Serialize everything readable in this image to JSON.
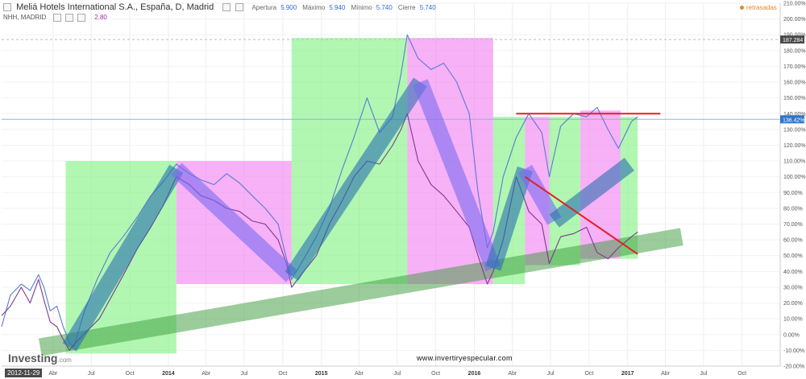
{
  "header": {
    "title": "Meliá Hotels International S.A., España, D, Madrid",
    "ohlc": [
      {
        "label": "Apertura",
        "value": "5.900"
      },
      {
        "label": "Máximo",
        "value": "5.940"
      },
      {
        "label": "Mínimo",
        "value": "5.740"
      },
      {
        "label": "Cierre",
        "value": "5.740"
      }
    ],
    "indicator_label": "NHH, MADRID",
    "indicator_value": "2.80",
    "delayed_label": "retrasadas"
  },
  "branding": {
    "logo_main": "Investing",
    "logo_suffix": ".com",
    "website": "www.invertiryespecular.com"
  },
  "colors": {
    "price_line": "#5b79d6",
    "indicator_line": "#7b3a8e",
    "green_zone": "#7df27d",
    "pink_zone": "#f27df2",
    "blue_band": "#2a6fb0",
    "purple_band": "#7a6af0",
    "trend_band": "#3a9a3a",
    "red_line": "#e0202a",
    "axis_text": "#555555",
    "badge_blue": "#2f74c9",
    "badge_dark": "#4a4a4a"
  },
  "chart_data": {
    "type": "line",
    "x_axis": {
      "type": "date",
      "tick_labels": [
        "Abr",
        "Jul",
        "Oct",
        "2014",
        "Abr",
        "Jul",
        "Oct",
        "2015",
        "Abr",
        "Jul",
        "Oct",
        "2016",
        "Abr",
        "Jul",
        "Oct",
        "2017",
        "Abr",
        "Jul",
        "Oct"
      ],
      "tick_dates": [
        "2013-04-01",
        "2013-07-01",
        "2013-10-01",
        "2014-01-01",
        "2014-04-01",
        "2014-07-01",
        "2014-10-01",
        "2015-01-01",
        "2015-04-01",
        "2015-07-01",
        "2015-10-01",
        "2016-01-01",
        "2016-04-01",
        "2016-07-01",
        "2016-10-01",
        "2017-01-01",
        "2017-04-01",
        "2017-07-01",
        "2017-10-01"
      ],
      "range": [
        "2012-11-29",
        "2017-12-31"
      ],
      "start_label": "2012-11-29"
    },
    "y_axis": {
      "unit": "%",
      "range": [
        -20,
        210
      ],
      "ticks": [
        -20,
        -10,
        0,
        10,
        20,
        30,
        40,
        50,
        60,
        70,
        80,
        90,
        100,
        110,
        120,
        130,
        140,
        150,
        160,
        170,
        180,
        190,
        200,
        210
      ],
      "tick_suffix": ".00%"
    },
    "price_badges": [
      {
        "label": "187.284",
        "value": 187,
        "style": "dark"
      },
      {
        "label": "136.42%",
        "value": 136.42,
        "style": "blue"
      }
    ],
    "series": [
      {
        "key": "price",
        "points": [
          [
            "2012-11-29",
            5
          ],
          [
            "2012-12-20",
            25
          ],
          [
            "2013-01-15",
            32
          ],
          [
            "2013-02-05",
            28
          ],
          [
            "2013-02-25",
            38
          ],
          [
            "2013-03-10",
            30
          ],
          [
            "2013-03-25",
            15
          ],
          [
            "2013-04-10",
            18
          ],
          [
            "2013-04-25",
            5
          ],
          [
            "2013-05-10",
            -5
          ],
          [
            "2013-05-20",
            -8
          ],
          [
            "2013-06-15",
            15
          ],
          [
            "2013-07-15",
            35
          ],
          [
            "2013-08-15",
            52
          ],
          [
            "2013-09-15",
            62
          ],
          [
            "2013-10-20",
            75
          ],
          [
            "2013-11-20",
            88
          ],
          [
            "2013-12-20",
            97
          ],
          [
            "2014-01-20",
            108
          ],
          [
            "2014-02-20",
            102
          ],
          [
            "2014-03-20",
            98
          ],
          [
            "2014-04-20",
            95
          ],
          [
            "2014-05-20",
            102
          ],
          [
            "2014-06-20",
            96
          ],
          [
            "2014-07-20",
            88
          ],
          [
            "2014-08-20",
            80
          ],
          [
            "2014-09-20",
            70
          ],
          [
            "2014-10-10",
            48
          ],
          [
            "2014-10-22",
            35
          ],
          [
            "2014-11-20",
            48
          ],
          [
            "2014-12-20",
            62
          ],
          [
            "2015-01-20",
            80
          ],
          [
            "2015-02-20",
            105
          ],
          [
            "2015-03-20",
            125
          ],
          [
            "2015-04-20",
            150
          ],
          [
            "2015-05-20",
            128
          ],
          [
            "2015-06-20",
            138
          ],
          [
            "2015-07-10",
            165
          ],
          [
            "2015-07-25",
            190
          ],
          [
            "2015-08-20",
            175
          ],
          [
            "2015-09-20",
            168
          ],
          [
            "2015-10-20",
            172
          ],
          [
            "2015-11-20",
            160
          ],
          [
            "2015-12-20",
            140
          ],
          [
            "2016-01-10",
            90
          ],
          [
            "2016-02-01",
            55
          ],
          [
            "2016-02-15",
            65
          ],
          [
            "2016-03-10",
            100
          ],
          [
            "2016-04-10",
            125
          ],
          [
            "2016-05-10",
            140
          ],
          [
            "2016-06-10",
            128
          ],
          [
            "2016-06-28",
            100
          ],
          [
            "2016-07-25",
            132
          ],
          [
            "2016-08-25",
            140
          ],
          [
            "2016-09-25",
            138
          ],
          [
            "2016-10-20",
            144
          ],
          [
            "2016-11-15",
            130
          ],
          [
            "2016-12-10",
            118
          ],
          [
            "2017-01-10",
            135
          ],
          [
            "2017-01-25",
            138
          ]
        ]
      },
      {
        "key": "indicator",
        "points": [
          [
            "2012-11-29",
            12
          ],
          [
            "2012-12-20",
            18
          ],
          [
            "2013-01-15",
            30
          ],
          [
            "2013-02-05",
            20
          ],
          [
            "2013-02-25",
            35
          ],
          [
            "2013-03-10",
            22
          ],
          [
            "2013-03-25",
            8
          ],
          [
            "2013-04-10",
            5
          ],
          [
            "2013-04-25",
            -3
          ],
          [
            "2013-05-10",
            -10
          ],
          [
            "2013-05-25",
            -5
          ],
          [
            "2013-06-20",
            2
          ],
          [
            "2013-07-20",
            10
          ],
          [
            "2013-08-20",
            25
          ],
          [
            "2013-09-20",
            40
          ],
          [
            "2013-10-20",
            55
          ],
          [
            "2013-11-20",
            68
          ],
          [
            "2013-12-20",
            82
          ],
          [
            "2014-01-20",
            100
          ],
          [
            "2014-02-20",
            95
          ],
          [
            "2014-03-20",
            88
          ],
          [
            "2014-04-20",
            85
          ],
          [
            "2014-05-20",
            80
          ],
          [
            "2014-06-20",
            78
          ],
          [
            "2014-07-20",
            72
          ],
          [
            "2014-08-20",
            70
          ],
          [
            "2014-09-20",
            60
          ],
          [
            "2014-10-10",
            45
          ],
          [
            "2014-10-22",
            30
          ],
          [
            "2014-11-20",
            40
          ],
          [
            "2014-12-20",
            50
          ],
          [
            "2015-01-20",
            70
          ],
          [
            "2015-02-20",
            85
          ],
          [
            "2015-03-20",
            100
          ],
          [
            "2015-04-20",
            110
          ],
          [
            "2015-05-20",
            108
          ],
          [
            "2015-06-20",
            120
          ],
          [
            "2015-07-10",
            130
          ],
          [
            "2015-07-25",
            140
          ],
          [
            "2015-08-20",
            110
          ],
          [
            "2015-09-20",
            95
          ],
          [
            "2015-10-20",
            88
          ],
          [
            "2015-11-20",
            78
          ],
          [
            "2015-12-20",
            68
          ],
          [
            "2016-01-10",
            50
          ],
          [
            "2016-02-01",
            32
          ],
          [
            "2016-02-15",
            40
          ],
          [
            "2016-03-10",
            60
          ],
          [
            "2016-04-10",
            100
          ],
          [
            "2016-05-10",
            78
          ],
          [
            "2016-06-10",
            70
          ],
          [
            "2016-06-28",
            45
          ],
          [
            "2016-07-25",
            62
          ],
          [
            "2016-08-25",
            64
          ],
          [
            "2016-09-25",
            68
          ],
          [
            "2016-10-20",
            52
          ],
          [
            "2016-11-15",
            48
          ],
          [
            "2016-12-10",
            55
          ],
          [
            "2017-01-10",
            62
          ],
          [
            "2017-01-25",
            65
          ]
        ]
      }
    ],
    "annotations": {
      "zones": [
        {
          "kind": "rise",
          "start": "2013-05-01",
          "end": "2014-01-20",
          "y_top": 110,
          "y_bottom": -12
        },
        {
          "kind": "fall",
          "start": "2014-01-20",
          "end": "2014-10-22",
          "y_top": 110,
          "y_bottom": 32
        },
        {
          "kind": "rise",
          "start": "2014-10-22",
          "end": "2015-07-25",
          "y_top": 188,
          "y_bottom": 32
        },
        {
          "kind": "fall",
          "start": "2015-07-25",
          "end": "2016-02-15",
          "y_top": 188,
          "y_bottom": 32
        },
        {
          "kind": "rise",
          "start": "2016-02-15",
          "end": "2016-05-01",
          "y_top": 138,
          "y_bottom": 32
        },
        {
          "kind": "fall",
          "start": "2016-05-01",
          "end": "2016-06-28",
          "y_top": 138,
          "y_bottom": 44
        },
        {
          "kind": "rise",
          "start": "2016-06-28",
          "end": "2016-09-10",
          "y_top": 138,
          "y_bottom": 44
        },
        {
          "kind": "fall",
          "start": "2016-09-10",
          "end": "2016-12-15",
          "y_top": 142,
          "y_bottom": 48
        },
        {
          "kind": "rise",
          "start": "2016-12-15",
          "end": "2017-01-25",
          "y_top": 138,
          "y_bottom": 48
        }
      ],
      "bands": [
        {
          "kind": "up",
          "from": [
            "2013-05-10",
            -8
          ],
          "to": [
            "2014-01-20",
            105
          ]
        },
        {
          "kind": "down",
          "from": [
            "2014-01-20",
            105
          ],
          "to": [
            "2014-10-22",
            37
          ]
        },
        {
          "kind": "up",
          "from": [
            "2014-10-22",
            37
          ],
          "to": [
            "2015-08-25",
            160
          ]
        },
        {
          "kind": "down",
          "from": [
            "2015-08-25",
            160
          ],
          "to": [
            "2016-02-15",
            42
          ]
        },
        {
          "kind": "up",
          "from": [
            "2016-02-15",
            42
          ],
          "to": [
            "2016-05-01",
            105
          ]
        },
        {
          "kind": "down",
          "from": [
            "2016-05-01",
            105
          ],
          "to": [
            "2016-07-10",
            72
          ]
        },
        {
          "kind": "up",
          "from": [
            "2016-07-10",
            72
          ],
          "to": [
            "2017-01-05",
            108
          ]
        }
      ],
      "trend_channel": {
        "from": [
          "2013-03-01",
          -8
        ],
        "to": [
          "2017-05-10",
          62
        ]
      },
      "lines": [
        {
          "from": [
            "2016-04-10",
            140
          ],
          "to": [
            "2017-03-20",
            140
          ]
        },
        {
          "from": [
            "2016-05-01",
            100
          ],
          "to": [
            "2017-01-25",
            51
          ]
        }
      ],
      "reference_lines": [
        {
          "value": 187,
          "style": "dashed"
        },
        {
          "value": 136.42,
          "style": "solid"
        }
      ]
    }
  }
}
